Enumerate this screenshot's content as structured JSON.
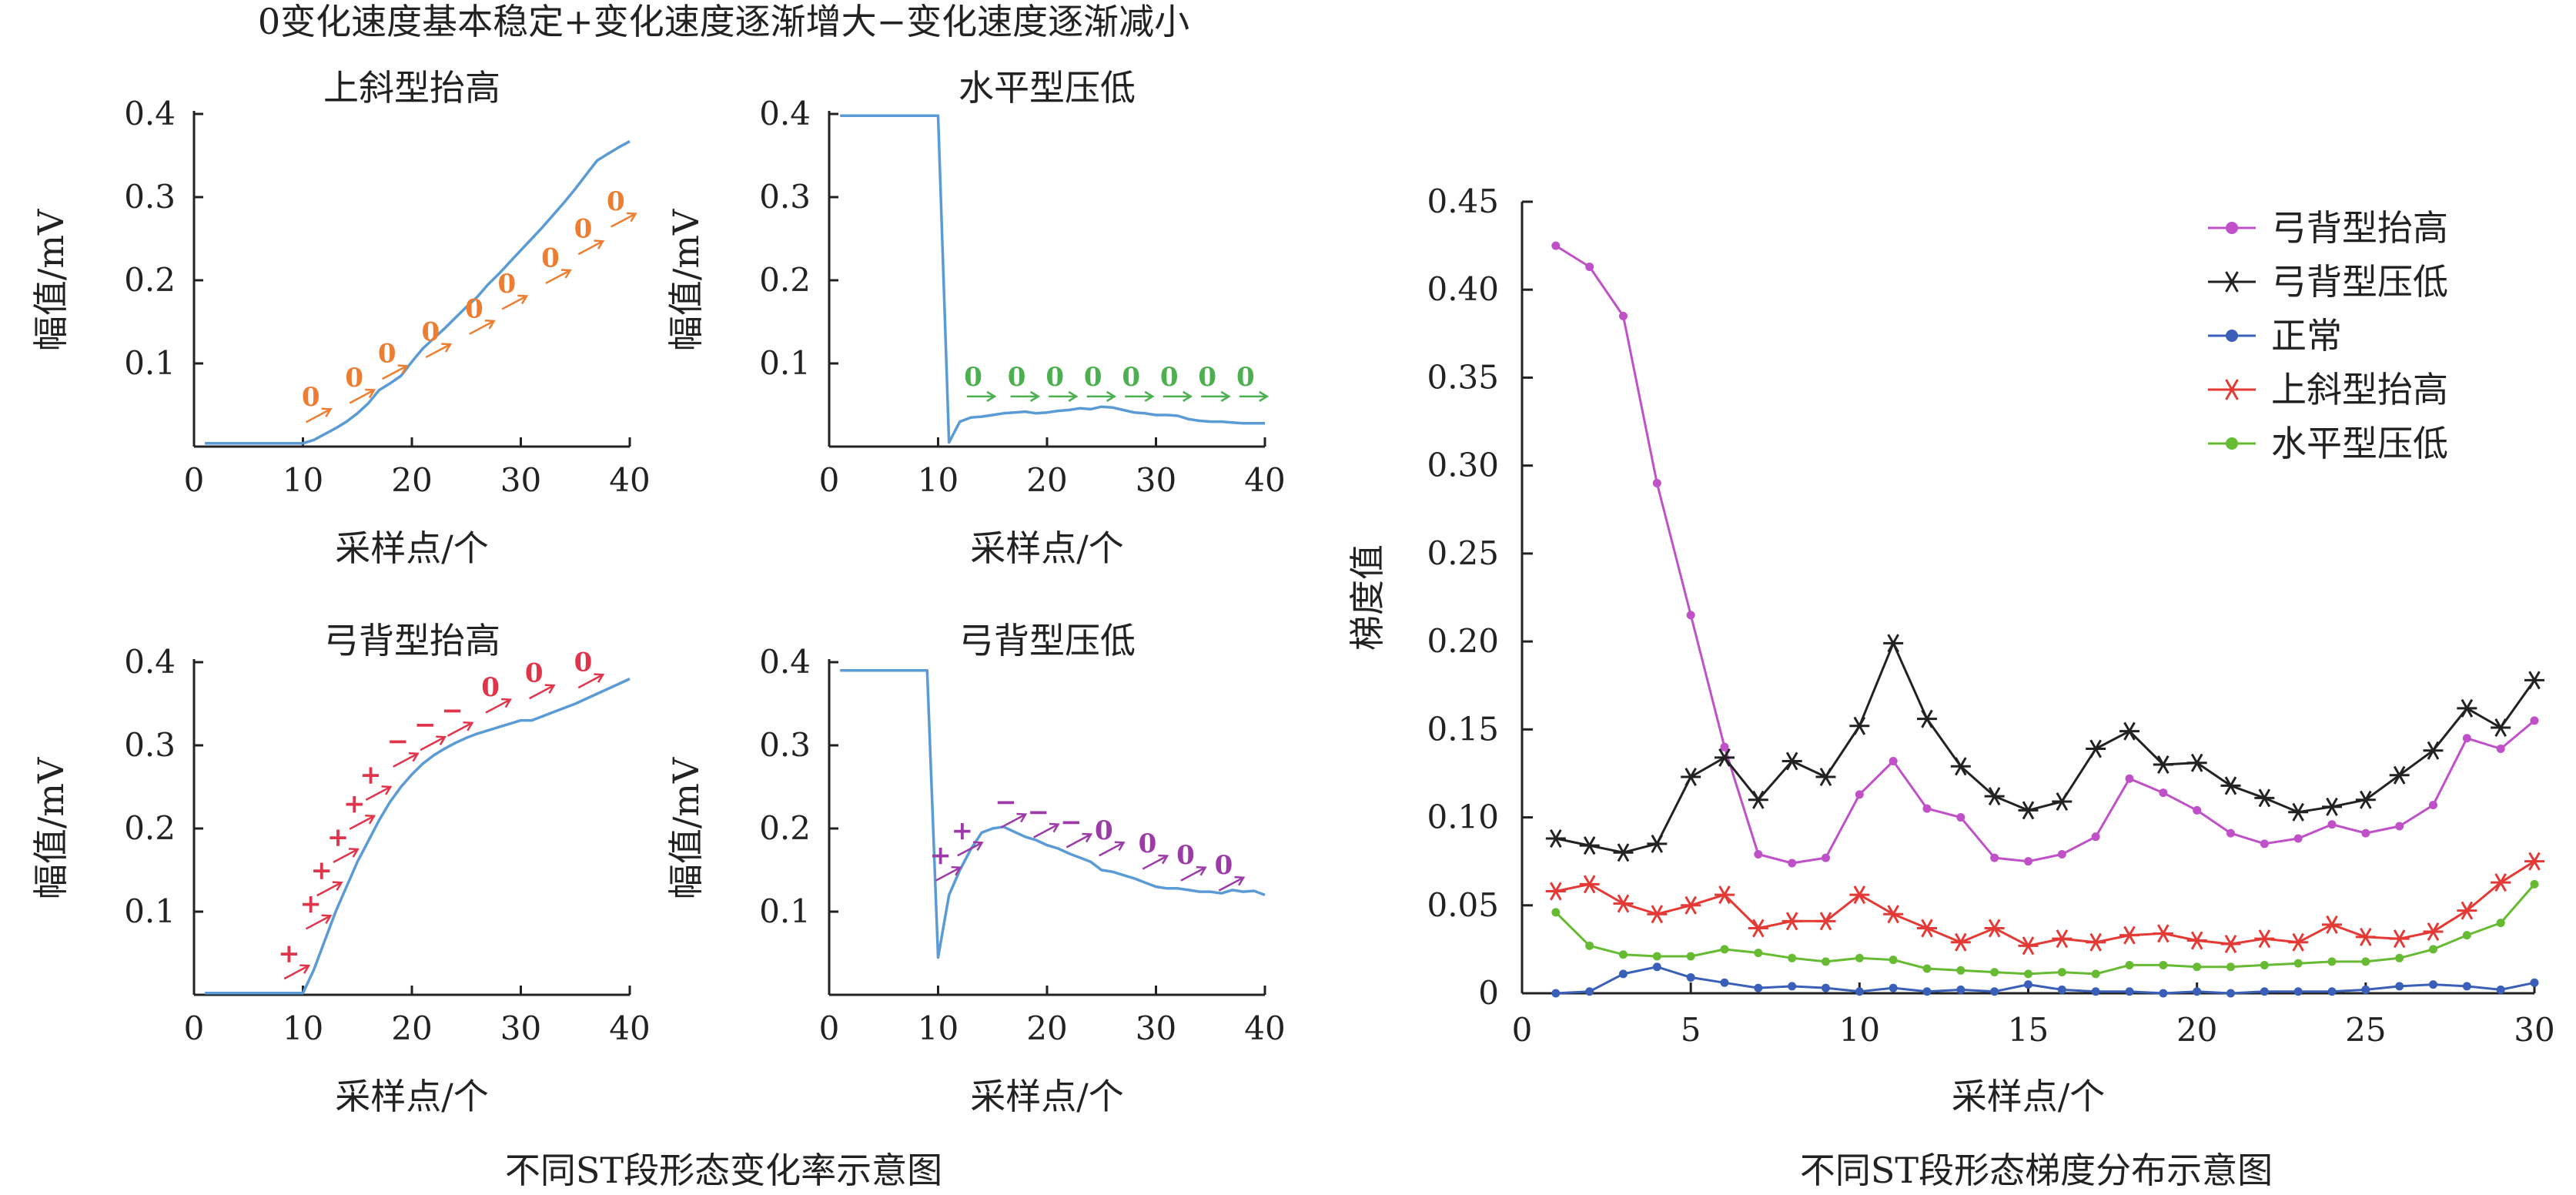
{
  "page": {
    "top_caption": "0变化速度基本稳定+变化速度逐渐增大−变化速度逐渐减小",
    "left_caption": "不同ST段形态变化率示意图",
    "right_caption": "不同ST段形态梯度分布示意图"
  },
  "colors": {
    "axis": "#222222",
    "curve": "#5b9bd5",
    "orange": "#ed7d31",
    "green": "#4caf50",
    "red": "#e0344a",
    "purple": "#9c3aa8",
    "magenta": "#c050c8",
    "black": "#222222",
    "blue": "#3a5fb8",
    "line_red": "#e53935",
    "line_green": "#66bb33"
  },
  "chart_data": [
    {
      "id": "c1",
      "type": "line",
      "title": "上斜型抬高",
      "xlabel": "采样点/个",
      "ylabel": "幅值/mV",
      "xlim": [
        0,
        40
      ],
      "ylim": [
        0,
        0.4
      ],
      "xticks": [
        "0",
        "10",
        "20",
        "30",
        "40"
      ],
      "yticks": [
        "0.1",
        "0.2",
        "0.3",
        "0.4"
      ],
      "series": [
        {
          "x": [
            1,
            2,
            3,
            4,
            5,
            6,
            7,
            8,
            9,
            10,
            11,
            12,
            13,
            14,
            15,
            16,
            17,
            18,
            19,
            20,
            21,
            22,
            23,
            24,
            25,
            26,
            27,
            28,
            29,
            30,
            31,
            32,
            33,
            34,
            35,
            36,
            37,
            38,
            39,
            40
          ],
          "values": [
            0.004,
            0.004,
            0.004,
            0.004,
            0.004,
            0.004,
            0.004,
            0.004,
            0.004,
            0.004,
            0.008,
            0.015,
            0.022,
            0.03,
            0.04,
            0.052,
            0.068,
            0.076,
            0.085,
            0.102,
            0.118,
            0.13,
            0.142,
            0.155,
            0.168,
            0.18,
            0.195,
            0.208,
            0.222,
            0.236,
            0.25,
            0.264,
            0.279,
            0.294,
            0.31,
            0.327,
            0.344,
            0.352,
            0.36,
            0.367
          ]
        }
      ],
      "annotations": {
        "symbols": [
          "0",
          "0",
          "0",
          "0",
          "0",
          "0",
          "0",
          "0",
          "0"
        ],
        "at": [
          [
            11,
            0.04
          ],
          [
            15,
            0.063
          ],
          [
            18,
            0.092
          ],
          [
            22,
            0.118
          ],
          [
            26,
            0.146
          ],
          [
            29,
            0.176
          ],
          [
            33,
            0.207
          ],
          [
            36,
            0.242
          ],
          [
            39,
            0.275
          ]
        ],
        "color": "#ed7d31"
      }
    },
    {
      "id": "c2",
      "type": "line",
      "title": "水平型压低",
      "xlabel": "采样点/个",
      "ylabel": "幅值/mV",
      "xlim": [
        0,
        40
      ],
      "ylim": [
        0,
        0.4
      ],
      "xticks": [
        "0",
        "10",
        "20",
        "30",
        "40"
      ],
      "yticks": [
        "0.1",
        "0.2",
        "0.3",
        "0.4"
      ],
      "series": [
        {
          "x": [
            1,
            2,
            3,
            4,
            5,
            6,
            7,
            8,
            9,
            10,
            11,
            12,
            13,
            14,
            15,
            16,
            17,
            18,
            19,
            20,
            21,
            22,
            23,
            24,
            25,
            26,
            27,
            28,
            29,
            30,
            31,
            32,
            33,
            34,
            35,
            36,
            37,
            38,
            39,
            40
          ],
          "values": [
            0.398,
            0.398,
            0.398,
            0.398,
            0.398,
            0.398,
            0.398,
            0.398,
            0.398,
            0.398,
            0.005,
            0.03,
            0.035,
            0.036,
            0.038,
            0.04,
            0.041,
            0.042,
            0.04,
            0.041,
            0.043,
            0.044,
            0.046,
            0.045,
            0.048,
            0.047,
            0.044,
            0.041,
            0.04,
            0.038,
            0.038,
            0.037,
            0.033,
            0.031,
            0.03,
            0.03,
            0.029,
            0.028,
            0.028,
            0.028
          ]
        }
      ],
      "annotations": {
        "symbols": [
          "0",
          "0",
          "0",
          "0",
          "0",
          "0",
          "0",
          "0"
        ],
        "at": [
          [
            13.5,
            0.064
          ],
          [
            17.5,
            0.064
          ],
          [
            21,
            0.064
          ],
          [
            24.5,
            0.064
          ],
          [
            28,
            0.064
          ],
          [
            31.5,
            0.064
          ],
          [
            35,
            0.064
          ],
          [
            38.5,
            0.064
          ]
        ],
        "color": "#4caf50"
      }
    },
    {
      "id": "c3",
      "type": "line",
      "title": "弓背型抬高",
      "xlabel": "采样点/个",
      "ylabel": "幅值/mV",
      "xlim": [
        0,
        40
      ],
      "ylim": [
        0,
        0.4
      ],
      "xticks": [
        "0",
        "10",
        "20",
        "30",
        "40"
      ],
      "yticks": [
        "0.1",
        "0.2",
        "0.3",
        "0.4"
      ],
      "series": [
        {
          "x": [
            1,
            2,
            3,
            4,
            5,
            6,
            7,
            8,
            9,
            10,
            11,
            12,
            13,
            14,
            15,
            16,
            17,
            18,
            19,
            20,
            21,
            22,
            23,
            24,
            25,
            26,
            27,
            28,
            29,
            30,
            31,
            32,
            33,
            34,
            35,
            36,
            37,
            38,
            39,
            40
          ],
          "values": [
            0.002,
            0.002,
            0.002,
            0.002,
            0.002,
            0.002,
            0.002,
            0.002,
            0.002,
            0.002,
            0.03,
            0.065,
            0.1,
            0.13,
            0.16,
            0.185,
            0.21,
            0.232,
            0.25,
            0.265,
            0.278,
            0.288,
            0.296,
            0.303,
            0.309,
            0.314,
            0.318,
            0.322,
            0.326,
            0.33,
            0.33,
            0.335,
            0.34,
            0.345,
            0.35,
            0.356,
            0.362,
            0.368,
            0.374,
            0.38
          ]
        }
      ],
      "annotations": {
        "symbols": [
          "+",
          "+",
          "+",
          "+",
          "+",
          "+",
          "−",
          "−",
          "−",
          "0",
          "0",
          "0"
        ],
        "at": [
          [
            9,
            0.03
          ],
          [
            11,
            0.09
          ],
          [
            12,
            0.13
          ],
          [
            13.5,
            0.17
          ],
          [
            15,
            0.21
          ],
          [
            16.5,
            0.245
          ],
          [
            19,
            0.285
          ],
          [
            21.5,
            0.305
          ],
          [
            24,
            0.322
          ],
          [
            27.5,
            0.35
          ],
          [
            31.5,
            0.367
          ],
          [
            36,
            0.38
          ]
        ],
        "color": "#e0344a"
      }
    },
    {
      "id": "c4",
      "type": "line",
      "title": "弓背型压低",
      "xlabel": "采样点/个",
      "ylabel": "幅值/mV",
      "xlim": [
        0,
        40
      ],
      "ylim": [
        0,
        0.4
      ],
      "xticks": [
        "0",
        "10",
        "20",
        "30",
        "40"
      ],
      "yticks": [
        "0.1",
        "0.2",
        "0.3",
        "0.4"
      ],
      "series": [
        {
          "x": [
            1,
            2,
            3,
            4,
            5,
            6,
            7,
            8,
            9,
            10,
            11,
            12,
            13,
            14,
            15,
            16,
            17,
            18,
            19,
            20,
            21,
            22,
            23,
            24,
            25,
            26,
            27,
            28,
            29,
            30,
            31,
            32,
            33,
            34,
            35,
            36,
            37,
            38,
            39,
            40
          ],
          "values": [
            0.39,
            0.39,
            0.39,
            0.39,
            0.39,
            0.39,
            0.39,
            0.39,
            0.39,
            0.045,
            0.12,
            0.15,
            0.175,
            0.195,
            0.2,
            0.202,
            0.196,
            0.19,
            0.186,
            0.18,
            0.176,
            0.17,
            0.165,
            0.16,
            0.15,
            0.148,
            0.144,
            0.14,
            0.135,
            0.13,
            0.128,
            0.128,
            0.126,
            0.124,
            0.124,
            0.122,
            0.126,
            0.124,
            0.125,
            0.12
          ]
        }
      ],
      "annotations": {
        "symbols": [
          "+",
          "+",
          "−",
          "−",
          "−",
          "0",
          "0",
          "0",
          "0"
        ],
        "at": [
          [
            10.5,
            0.148
          ],
          [
            12.5,
            0.178
          ],
          [
            16.5,
            0.212
          ],
          [
            19.5,
            0.2
          ],
          [
            22.5,
            0.188
          ],
          [
            25.5,
            0.178
          ],
          [
            29.5,
            0.162
          ],
          [
            33,
            0.148
          ],
          [
            36.5,
            0.136
          ]
        ],
        "color": "#9c3aa8"
      }
    },
    {
      "id": "c5",
      "type": "line",
      "xlabel": "采样点/个",
      "ylabel": "梯度值",
      "xlim": [
        0,
        30
      ],
      "ylim": [
        0,
        0.45
      ],
      "xticks": [
        "0",
        "5",
        "10",
        "15",
        "20",
        "25",
        "30"
      ],
      "yticks": [
        "0",
        "0.05",
        "0.10",
        "0.15",
        "0.20",
        "0.25",
        "0.30",
        "0.35",
        "0.40",
        "0.45"
      ],
      "legend": "top-right",
      "x": [
        1,
        2,
        3,
        4,
        5,
        6,
        7,
        8,
        9,
        10,
        11,
        12,
        13,
        14,
        15,
        16,
        17,
        18,
        19,
        20,
        21,
        22,
        23,
        24,
        25,
        26,
        27,
        28,
        29,
        30
      ],
      "series": [
        {
          "name": "弓背型抬高",
          "marker": "dot",
          "color": "#c050c8",
          "values": [
            0.425,
            0.413,
            0.385,
            0.29,
            0.215,
            0.14,
            0.079,
            0.074,
            0.077,
            0.113,
            0.132,
            0.105,
            0.1,
            0.077,
            0.075,
            0.079,
            0.089,
            0.122,
            0.114,
            0.104,
            0.091,
            0.085,
            0.088,
            0.096,
            0.091,
            0.095,
            0.107,
            0.145,
            0.139,
            0.155
          ]
        },
        {
          "name": "弓背型压低",
          "marker": "asterisk",
          "color": "#222222",
          "values": [
            0.088,
            0.084,
            0.08,
            0.085,
            0.123,
            0.134,
            0.11,
            0.132,
            0.123,
            0.152,
            0.199,
            0.156,
            0.129,
            0.112,
            0.104,
            0.109,
            0.139,
            0.149,
            0.13,
            0.131,
            0.118,
            0.111,
            0.103,
            0.106,
            0.11,
            0.124,
            0.138,
            0.162,
            0.151,
            0.178
          ]
        },
        {
          "name": "正常",
          "marker": "dot",
          "color": "#3a5fb8",
          "values": [
            0.0,
            0.001,
            0.011,
            0.015,
            0.009,
            0.006,
            0.003,
            0.004,
            0.003,
            0.001,
            0.003,
            0.001,
            0.002,
            0.001,
            0.005,
            0.002,
            0.001,
            0.001,
            0.0,
            0.001,
            0.0,
            0.001,
            0.001,
            0.001,
            0.002,
            0.004,
            0.005,
            0.004,
            0.002,
            0.006
          ]
        },
        {
          "name": "上斜型抬高",
          "marker": "asterisk",
          "color": "#e53935",
          "values": [
            0.058,
            0.062,
            0.051,
            0.045,
            0.05,
            0.056,
            0.037,
            0.041,
            0.041,
            0.056,
            0.045,
            0.037,
            0.029,
            0.037,
            0.027,
            0.031,
            0.029,
            0.033,
            0.034,
            0.03,
            0.028,
            0.031,
            0.029,
            0.039,
            0.032,
            0.031,
            0.035,
            0.047,
            0.063,
            0.075
          ]
        },
        {
          "name": "水平型压低",
          "marker": "dot",
          "color": "#66bb33",
          "values": [
            0.046,
            0.027,
            0.022,
            0.021,
            0.021,
            0.025,
            0.023,
            0.02,
            0.018,
            0.02,
            0.019,
            0.014,
            0.013,
            0.012,
            0.011,
            0.012,
            0.011,
            0.016,
            0.016,
            0.015,
            0.015,
            0.016,
            0.017,
            0.018,
            0.018,
            0.02,
            0.025,
            0.033,
            0.04,
            0.062
          ]
        }
      ]
    }
  ]
}
